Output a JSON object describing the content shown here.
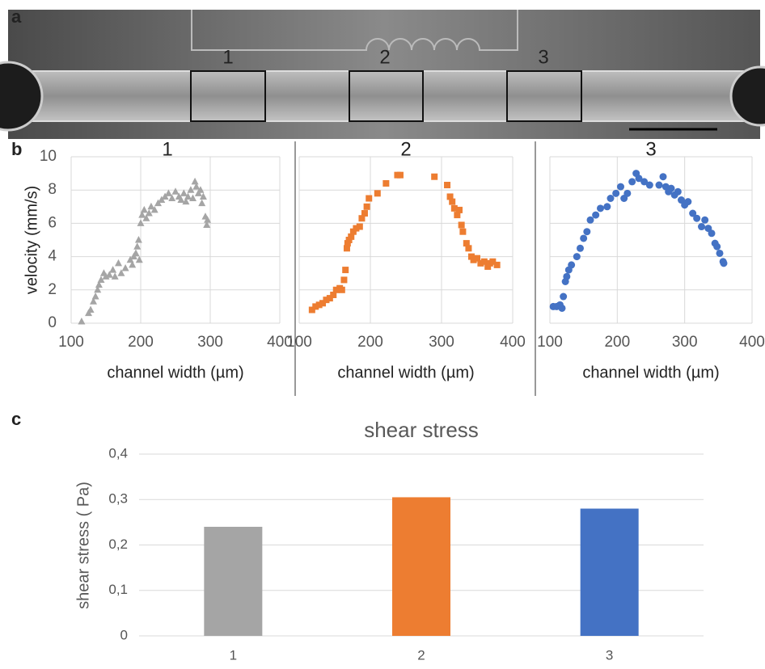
{
  "panel_labels": [
    "a",
    "b",
    "c"
  ],
  "image": {
    "regions": [
      "1",
      "2",
      "3"
    ]
  },
  "chart_data": [
    {
      "type": "scatter",
      "title": "1",
      "xlabel": "channel width (µm)",
      "ylabel": "velocity (mm/s)",
      "marker": "triangle",
      "color": "#a5a5a5",
      "x": [
        115,
        125,
        128,
        132,
        135,
        138,
        140,
        143,
        147,
        150,
        155,
        160,
        163,
        168,
        172,
        178,
        185,
        188,
        190,
        193,
        195,
        197,
        198,
        200,
        202,
        205,
        208,
        212,
        215,
        220,
        225,
        230,
        235,
        240,
        245,
        250,
        255,
        258,
        262,
        265,
        268,
        272,
        275,
        278,
        280,
        283,
        286,
        288,
        290,
        293,
        295,
        296
      ],
      "values": [
        0.1,
        0.6,
        0.8,
        1.3,
        1.6,
        2.0,
        2.3,
        2.6,
        3.0,
        2.8,
        2.9,
        3.2,
        2.8,
        3.6,
        3.0,
        3.3,
        3.8,
        3.5,
        4.0,
        4.2,
        4.6,
        5.0,
        3.8,
        6.0,
        6.5,
        6.8,
        6.3,
        6.6,
        7.0,
        6.8,
        7.2,
        7.4,
        7.6,
        7.8,
        7.5,
        7.9,
        7.6,
        7.4,
        7.8,
        7.3,
        7.6,
        8.0,
        7.5,
        8.5,
        8.2,
        7.8,
        8.0,
        7.2,
        7.6,
        6.4,
        5.9,
        6.2
      ],
      "xlim": [
        100,
        400
      ],
      "xticks": [
        100,
        200,
        300,
        400
      ],
      "ylim": [
        0,
        10
      ],
      "yticks": [
        0,
        2,
        4,
        6,
        8,
        10
      ],
      "grid": true
    },
    {
      "type": "scatter",
      "title": "2",
      "xlabel": "channel width (µm)",
      "marker": "square",
      "color": "#ed7d31",
      "x": [
        118,
        123,
        128,
        133,
        138,
        143,
        148,
        152,
        157,
        160,
        163,
        165,
        167,
        168,
        170,
        173,
        176,
        180,
        185,
        188,
        192,
        195,
        198,
        210,
        222,
        238,
        242,
        290,
        308,
        312,
        315,
        318,
        322,
        325,
        328,
        330,
        335,
        338,
        342,
        345,
        350,
        355,
        360,
        365,
        368,
        372,
        378
      ],
      "values": [
        0.8,
        1.0,
        1.1,
        1.2,
        1.4,
        1.5,
        1.7,
        2.0,
        2.1,
        2.0,
        2.6,
        3.2,
        4.5,
        4.8,
        5.0,
        5.2,
        5.5,
        5.7,
        5.8,
        6.3,
        6.6,
        7.0,
        7.5,
        7.8,
        8.4,
        8.9,
        8.9,
        8.8,
        8.3,
        7.6,
        7.3,
        6.9,
        6.5,
        6.8,
        5.9,
        5.5,
        4.8,
        4.5,
        4.0,
        3.8,
        3.9,
        3.6,
        3.7,
        3.4,
        3.6,
        3.7,
        3.5
      ],
      "xlim": [
        100,
        400
      ],
      "xticks": [
        100,
        200,
        300,
        400
      ],
      "ylim": [
        0,
        10
      ],
      "grid": true
    },
    {
      "type": "scatter",
      "title": "3",
      "xlabel": "channel width (µm)",
      "marker": "circle",
      "color": "#4472c4",
      "x": [
        105,
        110,
        115,
        118,
        120,
        123,
        125,
        128,
        132,
        140,
        145,
        150,
        155,
        160,
        168,
        175,
        185,
        190,
        198,
        205,
        210,
        215,
        222,
        228,
        232,
        240,
        248,
        262,
        268,
        272,
        276,
        280,
        285,
        290,
        295,
        300,
        305,
        312,
        318,
        325,
        330,
        335,
        340,
        345,
        348,
        352,
        357,
        358
      ],
      "values": [
        1.0,
        1.0,
        1.1,
        0.9,
        1.6,
        2.5,
        2.8,
        3.2,
        3.5,
        4.0,
        4.5,
        5.1,
        5.5,
        6.2,
        6.5,
        6.9,
        7.0,
        7.5,
        7.8,
        8.2,
        7.5,
        7.8,
        8.5,
        9.0,
        8.7,
        8.5,
        8.3,
        8.3,
        8.8,
        8.2,
        7.9,
        8.1,
        7.7,
        7.9,
        7.4,
        7.1,
        7.3,
        6.6,
        6.3,
        5.8,
        6.2,
        5.7,
        5.4,
        4.8,
        4.6,
        4.2,
        3.7,
        3.6
      ],
      "xlim": [
        100,
        400
      ],
      "xticks": [
        100,
        200,
        300,
        400
      ],
      "ylim": [
        0,
        10
      ],
      "grid": true
    },
    {
      "type": "bar",
      "title": "shear stress",
      "ylabel": "shear stress ( Pa)",
      "categories": [
        "1",
        "2",
        "3"
      ],
      "values": [
        0.24,
        0.305,
        0.28
      ],
      "colors": [
        "#a5a5a5",
        "#ed7d31",
        "#4472c4"
      ],
      "ylim": [
        0,
        0.4
      ],
      "yticks": [
        {
          "value": 0,
          "label": "0"
        },
        {
          "value": 0.1,
          "label": "0,1"
        },
        {
          "value": 0.2,
          "label": "0,2"
        },
        {
          "value": 0.3,
          "label": "0,3"
        },
        {
          "value": 0.4,
          "label": "0,4"
        }
      ],
      "grid": true
    }
  ]
}
